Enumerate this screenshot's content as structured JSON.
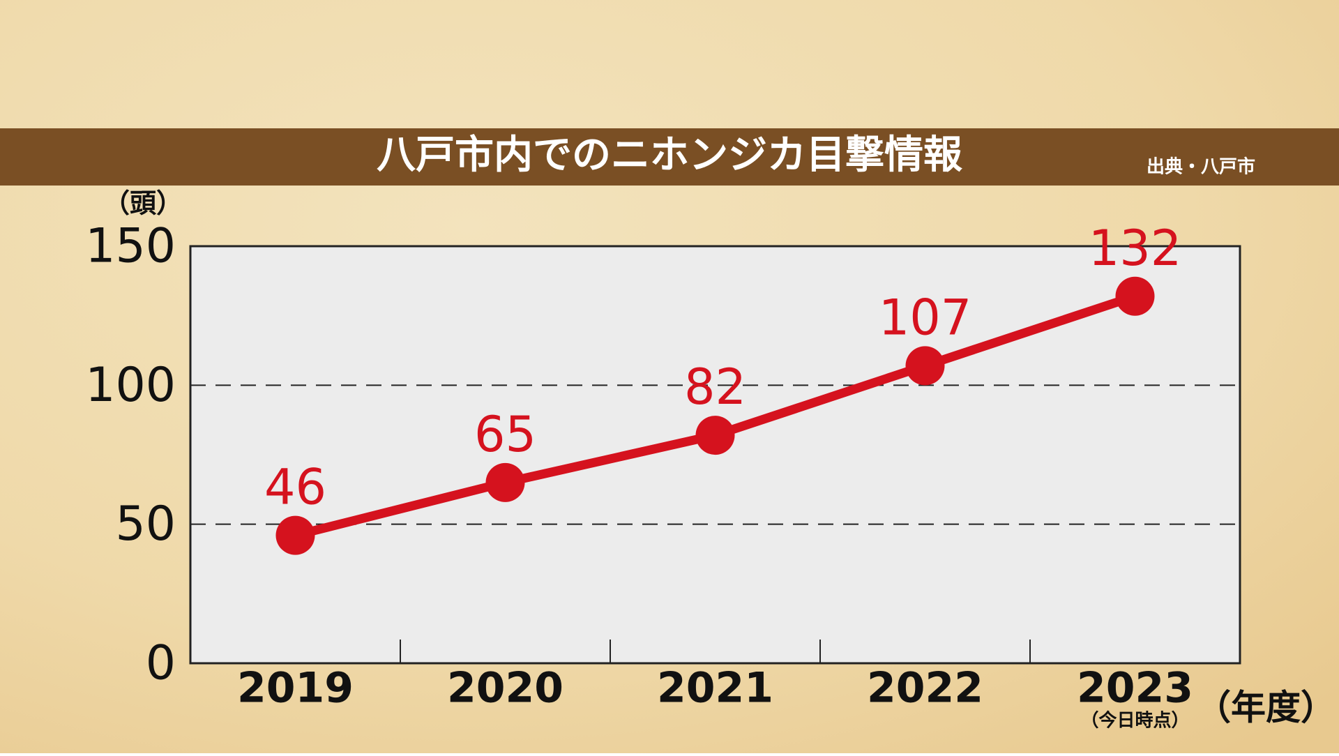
{
  "chart_data": {
    "type": "line",
    "title": "八戸市内でのニホンジカ目撃情報",
    "source": "出典・八戸市",
    "y_unit": "（頭）",
    "x_unit": "（年度）",
    "category_note": "（今日時点）",
    "categories": [
      "2019",
      "2020",
      "2021",
      "2022",
      "2023"
    ],
    "values": [
      46,
      65,
      82,
      107,
      132
    ],
    "color": "#d5121e",
    "ylim": [
      0,
      150
    ],
    "yticks": [
      0,
      50,
      100,
      150
    ],
    "grid": true
  }
}
